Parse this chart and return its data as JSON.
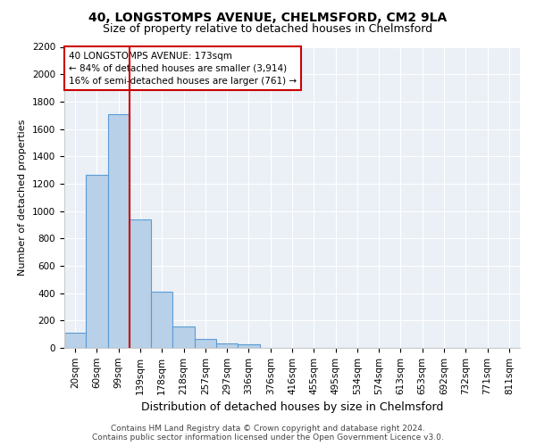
{
  "title": "40, LONGSTOMPS AVENUE, CHELMSFORD, CM2 9LA",
  "subtitle": "Size of property relative to detached houses in Chelmsford",
  "xlabel": "Distribution of detached houses by size in Chelmsford",
  "ylabel": "Number of detached properties",
  "categories": [
    "20sqm",
    "60sqm",
    "99sqm",
    "139sqm",
    "178sqm",
    "218sqm",
    "257sqm",
    "297sqm",
    "336sqm",
    "376sqm",
    "416sqm",
    "455sqm",
    "495sqm",
    "534sqm",
    "574sqm",
    "613sqm",
    "653sqm",
    "692sqm",
    "732sqm",
    "771sqm",
    "811sqm"
  ],
  "values": [
    110,
    1265,
    1710,
    940,
    410,
    155,
    65,
    35,
    25,
    0,
    0,
    0,
    0,
    0,
    0,
    0,
    0,
    0,
    0,
    0,
    0
  ],
  "bar_color": "#b8d0e8",
  "bar_edgecolor": "#5b9bd5",
  "vline_x": 2.5,
  "vline_color": "#cc0000",
  "annotation_box_edgecolor": "#cc0000",
  "annotation_line1": "40 LONGSTOMPS AVENUE: 173sqm",
  "annotation_line2": "← 84% of detached houses are smaller (3,914)",
  "annotation_line3": "16% of semi-detached houses are larger (761) →",
  "ylim": [
    0,
    2200
  ],
  "yticks": [
    0,
    200,
    400,
    600,
    800,
    1000,
    1200,
    1400,
    1600,
    1800,
    2000,
    2200
  ],
  "footer1": "Contains HM Land Registry data © Crown copyright and database right 2024.",
  "footer2": "Contains public sector information licensed under the Open Government Licence v3.0.",
  "background_color": "#eaf0f6",
  "title_fontsize": 10,
  "subtitle_fontsize": 9,
  "ylabel_fontsize": 8,
  "xlabel_fontsize": 9,
  "tick_fontsize": 7.5,
  "footer_fontsize": 6.5
}
